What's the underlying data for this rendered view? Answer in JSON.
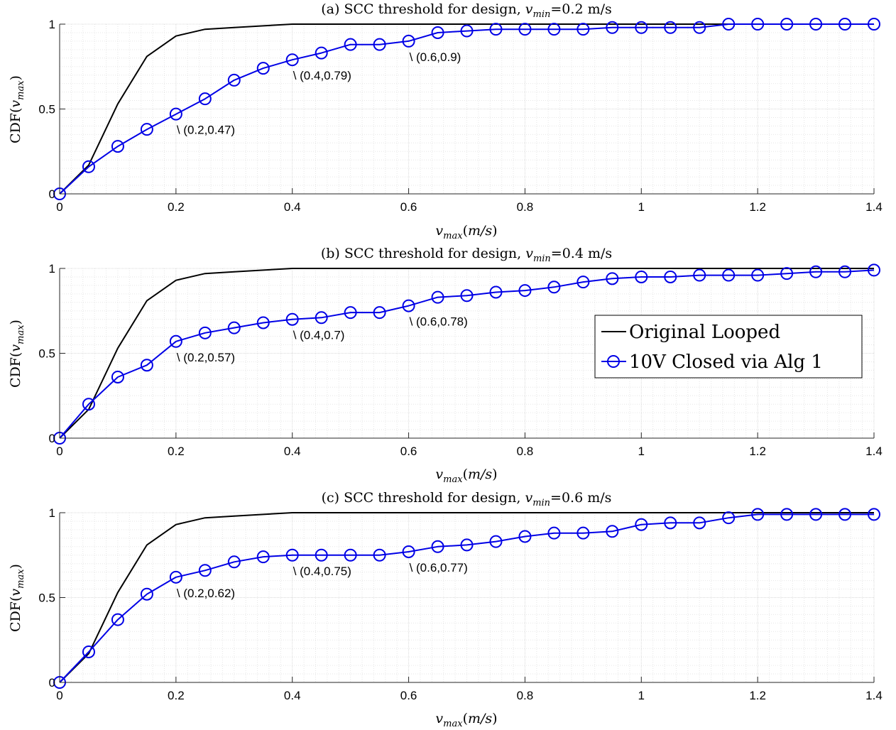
{
  "chart_data": [
    {
      "type": "line",
      "title": "(a) SCC threshold for design, v_min=0.2 m/s",
      "title_parts": {
        "prefix": "(a) SCC threshold for design, ",
        "var": "v",
        "sub": "min",
        "suffix": "=0.2 m/s"
      },
      "xlabel": "v_max(m/s)",
      "ylabel": "CDF(v_max)",
      "xlim": [
        0,
        1.4
      ],
      "ylim": [
        0,
        1
      ],
      "xticks": [
        "0",
        "0.2",
        "0.4",
        "0.6",
        "0.8",
        "1",
        "1.2",
        "1.4"
      ],
      "yticks": [
        "0",
        "0.5",
        "1"
      ],
      "grid": true,
      "series": [
        {
          "name": "Original Looped",
          "color": "#000000",
          "marker": "none",
          "x": [
            0,
            0.05,
            0.1,
            0.15,
            0.2,
            0.25,
            0.3,
            0.35,
            0.4,
            1.4
          ],
          "y": [
            0,
            0.17,
            0.53,
            0.81,
            0.93,
            0.97,
            0.98,
            0.99,
            1.0,
            1.0
          ]
        },
        {
          "name": "10V Closed via Alg 1",
          "color": "#0000e6",
          "marker": "circle",
          "x": [
            0,
            0.05,
            0.1,
            0.15,
            0.2,
            0.25,
            0.3,
            0.35,
            0.4,
            0.45,
            0.5,
            0.55,
            0.6,
            0.65,
            0.7,
            0.75,
            0.8,
            0.85,
            0.9,
            0.95,
            1.0,
            1.05,
            1.1,
            1.15,
            1.2,
            1.25,
            1.3,
            1.35,
            1.4
          ],
          "y": [
            0,
            0.16,
            0.28,
            0.38,
            0.47,
            0.56,
            0.67,
            0.74,
            0.79,
            0.83,
            0.88,
            0.88,
            0.9,
            0.95,
            0.96,
            0.97,
            0.97,
            0.97,
            0.97,
            0.98,
            0.98,
            0.98,
            0.98,
            1.0,
            1.0,
            1.0,
            1.0,
            1.0,
            1.0
          ]
        }
      ],
      "annotations": [
        {
          "text": "\\ (0.2,0.47)",
          "x": 0.2,
          "y": 0.47
        },
        {
          "text": "\\ (0.4,0.79)",
          "x": 0.4,
          "y": 0.79
        },
        {
          "text": "\\ (0.6,0.9)",
          "x": 0.6,
          "y": 0.9
        }
      ]
    },
    {
      "type": "line",
      "title": "(b) SCC threshold for design, v_min=0.4 m/s",
      "title_parts": {
        "prefix": "(b) SCC threshold for design, ",
        "var": "v",
        "sub": "min",
        "suffix": "=0.4 m/s"
      },
      "xlabel": "v_max(m/s)",
      "ylabel": "CDF(v_max)",
      "xlim": [
        0,
        1.4
      ],
      "ylim": [
        0,
        1
      ],
      "xticks": [
        "0",
        "0.2",
        "0.4",
        "0.6",
        "0.8",
        "1",
        "1.2",
        "1.4"
      ],
      "yticks": [
        "0",
        "0.5",
        "1"
      ],
      "grid": true,
      "legend": {
        "position": "center-right",
        "entries": [
          "Original Looped",
          "10V Closed via Alg 1"
        ]
      },
      "series": [
        {
          "name": "Original Looped",
          "color": "#000000",
          "marker": "none",
          "x": [
            0,
            0.05,
            0.1,
            0.15,
            0.2,
            0.25,
            0.3,
            0.35,
            0.4,
            1.4
          ],
          "y": [
            0,
            0.17,
            0.53,
            0.81,
            0.93,
            0.97,
            0.98,
            0.99,
            1.0,
            1.0
          ]
        },
        {
          "name": "10V Closed via Alg 1",
          "color": "#0000e6",
          "marker": "circle",
          "x": [
            0,
            0.05,
            0.1,
            0.15,
            0.2,
            0.25,
            0.3,
            0.35,
            0.4,
            0.45,
            0.5,
            0.55,
            0.6,
            0.65,
            0.7,
            0.75,
            0.8,
            0.85,
            0.9,
            0.95,
            1.0,
            1.05,
            1.1,
            1.15,
            1.2,
            1.25,
            1.3,
            1.35,
            1.4
          ],
          "y": [
            0,
            0.2,
            0.36,
            0.43,
            0.57,
            0.62,
            0.65,
            0.68,
            0.7,
            0.71,
            0.74,
            0.74,
            0.78,
            0.83,
            0.84,
            0.86,
            0.87,
            0.89,
            0.92,
            0.94,
            0.95,
            0.95,
            0.96,
            0.96,
            0.96,
            0.97,
            0.98,
            0.98,
            0.99
          ]
        }
      ],
      "annotations": [
        {
          "text": "\\ (0.2,0.57)",
          "x": 0.2,
          "y": 0.57
        },
        {
          "text": "\\ (0.4,0.7)",
          "x": 0.4,
          "y": 0.7
        },
        {
          "text": "\\ (0.6,0.78)",
          "x": 0.6,
          "y": 0.78
        }
      ]
    },
    {
      "type": "line",
      "title": "(c) SCC threshold for design, v_min=0.6 m/s",
      "title_parts": {
        "prefix": "(c) SCC threshold for design, ",
        "var": "v",
        "sub": "min",
        "suffix": "=0.6 m/s"
      },
      "xlabel": "v_max(m/s)",
      "ylabel": "CDF(v_max)",
      "xlim": [
        0,
        1.4
      ],
      "ylim": [
        0,
        1
      ],
      "xticks": [
        "0",
        "0.2",
        "0.4",
        "0.6",
        "0.8",
        "1",
        "1.2",
        "1.4"
      ],
      "yticks": [
        "0",
        "0.5",
        "1"
      ],
      "grid": true,
      "series": [
        {
          "name": "Original Looped",
          "color": "#000000",
          "marker": "none",
          "x": [
            0,
            0.05,
            0.1,
            0.15,
            0.2,
            0.25,
            0.3,
            0.35,
            0.4,
            1.4
          ],
          "y": [
            0,
            0.17,
            0.53,
            0.81,
            0.93,
            0.97,
            0.98,
            0.99,
            1.0,
            1.0
          ]
        },
        {
          "name": "10V Closed via Alg 1",
          "color": "#0000e6",
          "marker": "circle",
          "x": [
            0,
            0.05,
            0.1,
            0.15,
            0.2,
            0.25,
            0.3,
            0.35,
            0.4,
            0.45,
            0.5,
            0.55,
            0.6,
            0.65,
            0.7,
            0.75,
            0.8,
            0.85,
            0.9,
            0.95,
            1.0,
            1.05,
            1.1,
            1.15,
            1.2,
            1.25,
            1.3,
            1.35,
            1.4
          ],
          "y": [
            0,
            0.18,
            0.37,
            0.52,
            0.62,
            0.66,
            0.71,
            0.74,
            0.75,
            0.75,
            0.75,
            0.75,
            0.77,
            0.8,
            0.81,
            0.83,
            0.86,
            0.88,
            0.88,
            0.89,
            0.93,
            0.94,
            0.94,
            0.97,
            0.99,
            0.99,
            0.99,
            0.99,
            0.99
          ]
        }
      ],
      "annotations": [
        {
          "text": "\\ (0.2,0.62)",
          "x": 0.2,
          "y": 0.62
        },
        {
          "text": "\\ (0.4,0.75)",
          "x": 0.4,
          "y": 0.75
        },
        {
          "text": "\\ (0.6,0.77)",
          "x": 0.6,
          "y": 0.77
        }
      ]
    }
  ]
}
